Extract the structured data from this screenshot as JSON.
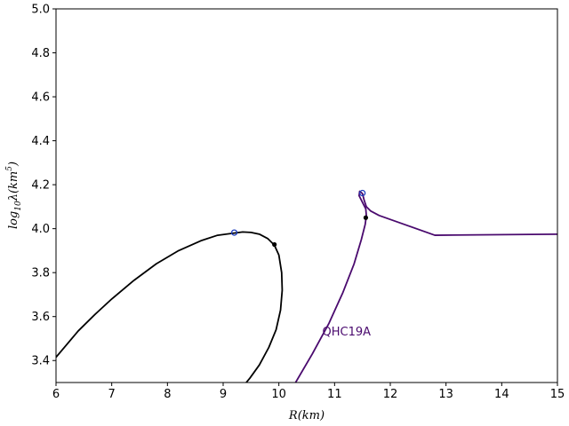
{
  "chart_data": {
    "type": "line",
    "xlabel": "R(km)",
    "ylabel": "log10λ(km5)",
    "ylabel_parts": {
      "base": "log",
      "sub": "10",
      "mid": "λ(km",
      "sup": "5",
      "end": ")"
    },
    "xlim": [
      6,
      15
    ],
    "ylim": [
      3.3,
      5.0
    ],
    "xticks": [
      "6",
      "7",
      "8",
      "9",
      "10",
      "11",
      "12",
      "13",
      "14",
      "15"
    ],
    "yticks": [
      "3.4",
      "3.6",
      "3.8",
      "4.0",
      "4.2",
      "4.4",
      "4.6",
      "4.8",
      "5.0"
    ],
    "grid": false,
    "series": [
      {
        "color": "#000000",
        "x": [
          6.0,
          6.2,
          6.4,
          6.7,
          7.0,
          7.4,
          7.8,
          8.2,
          8.6,
          8.9,
          9.2,
          9.35,
          9.5,
          9.65,
          9.8,
          9.92,
          10.0,
          10.05,
          10.06,
          10.03,
          9.95,
          9.82,
          9.65,
          9.48,
          9.35
        ],
        "y": [
          3.415,
          3.475,
          3.535,
          3.61,
          3.68,
          3.765,
          3.84,
          3.9,
          3.945,
          3.97,
          3.98,
          3.985,
          3.983,
          3.975,
          3.955,
          3.925,
          3.88,
          3.8,
          3.72,
          3.63,
          3.54,
          3.46,
          3.38,
          3.32,
          3.28
        ]
      },
      {
        "color": "#4a0a6e",
        "x": [
          10.3,
          10.6,
          10.9,
          11.15,
          11.35,
          11.48,
          11.55,
          11.57,
          11.56,
          11.5,
          11.44,
          11.45,
          11.5,
          11.53,
          11.57,
          11.65,
          11.8,
          12.3,
          12.8,
          15.0
        ],
        "y": [
          3.3,
          3.43,
          3.57,
          3.71,
          3.84,
          3.95,
          4.02,
          4.06,
          4.09,
          4.12,
          4.15,
          4.17,
          4.16,
          4.13,
          4.1,
          4.08,
          4.06,
          4.015,
          3.97,
          3.975
        ]
      }
    ],
    "markers": [
      {
        "x": 9.2,
        "y": 3.982,
        "style": "open",
        "color": "#1f3fbf"
      },
      {
        "x": 9.92,
        "y": 3.928,
        "style": "filled",
        "color": "#000000"
      },
      {
        "x": 11.5,
        "y": 4.162,
        "style": "open",
        "color": "#1f3fbf"
      },
      {
        "x": 11.56,
        "y": 4.05,
        "style": "filled",
        "color": "#000000"
      }
    ],
    "annotations": [
      {
        "text": "QHC19A",
        "x": 10.78,
        "y": 3.515,
        "color": "#4a0a6e"
      }
    ]
  }
}
